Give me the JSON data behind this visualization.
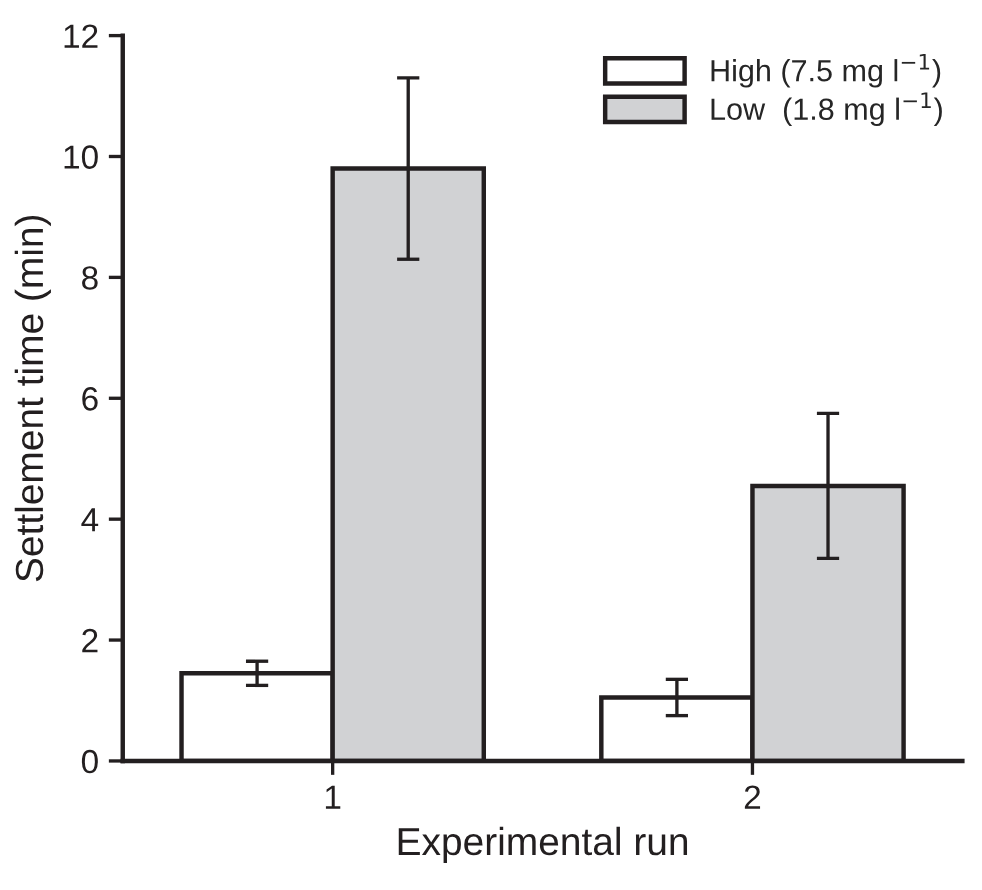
{
  "chart_data": {
    "type": "bar",
    "xlabel": "Experimental run",
    "ylabel": "Settlement time (min)",
    "categories": [
      "1",
      "2"
    ],
    "series": [
      {
        "name": "High (7.5 mg l$^{−1}$)",
        "color": "#ffffff",
        "values": [
          1.45,
          1.05
        ],
        "errors": [
          0.2,
          0.3
        ]
      },
      {
        "name": "Low  (1.8 mg l$^{−1}$)",
        "color": "#d1d2d4",
        "values": [
          9.8,
          4.55
        ],
        "errors": [
          1.5,
          1.2
        ]
      }
    ],
    "ylim": [
      0,
      12
    ],
    "yticks": [
      0,
      2,
      4,
      6,
      8,
      10,
      12
    ],
    "grid": false,
    "legend": "top right"
  }
}
